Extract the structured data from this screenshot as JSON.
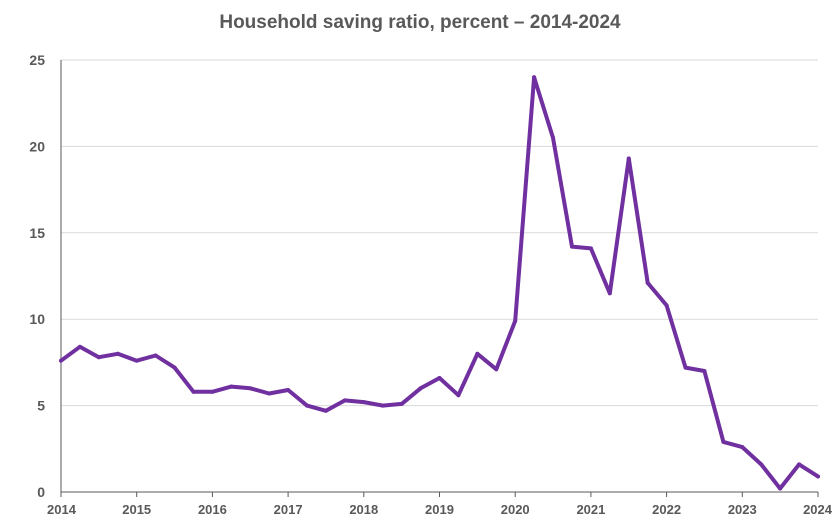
{
  "chart_data": {
    "type": "line",
    "title": "Household saving ratio, percent –  2014-2024",
    "xlabel": "",
    "ylabel": "",
    "ylim": [
      0,
      25
    ],
    "xlim": [
      2014,
      2024
    ],
    "grid": "horizontal",
    "legend": "none",
    "yticks": [
      "0",
      "5",
      "10",
      "15",
      "20",
      "25"
    ],
    "xticks": [
      "2014",
      "2015",
      "2016",
      "2017",
      "2018",
      "2019",
      "2020",
      "2021",
      "2022",
      "2023",
      "2024"
    ],
    "series": [
      {
        "color": "#7030a0",
        "x": [
          2014.0,
          2014.25,
          2014.5,
          2014.75,
          2015.0,
          2015.25,
          2015.5,
          2015.75,
          2016.0,
          2016.25,
          2016.5,
          2016.75,
          2017.0,
          2017.25,
          2017.5,
          2017.75,
          2018.0,
          2018.25,
          2018.5,
          2018.75,
          2019.0,
          2019.25,
          2019.5,
          2019.75,
          2020.0,
          2020.25,
          2020.5,
          2020.75,
          2021.0,
          2021.25,
          2021.5,
          2021.75,
          2022.0,
          2022.25,
          2022.5,
          2022.75,
          2023.0,
          2023.25,
          2023.5,
          2023.75,
          2024.0
        ],
        "values": [
          7.6,
          8.4,
          7.8,
          8.0,
          7.6,
          7.9,
          7.2,
          5.8,
          5.8,
          6.1,
          6.0,
          5.7,
          5.9,
          5.0,
          4.7,
          5.3,
          5.2,
          5.0,
          5.1,
          6.0,
          6.6,
          5.6,
          8.0,
          7.1,
          9.9,
          24.0,
          20.5,
          14.2,
          14.1,
          11.5,
          19.3,
          12.1,
          10.8,
          7.2,
          7.0,
          2.9,
          2.6,
          1.6,
          0.2,
          1.6,
          0.9
        ]
      }
    ]
  },
  "colors": {
    "line": "#7030a0",
    "grid": "#d9d9d9",
    "axis": "#595959",
    "text": "#595959"
  }
}
